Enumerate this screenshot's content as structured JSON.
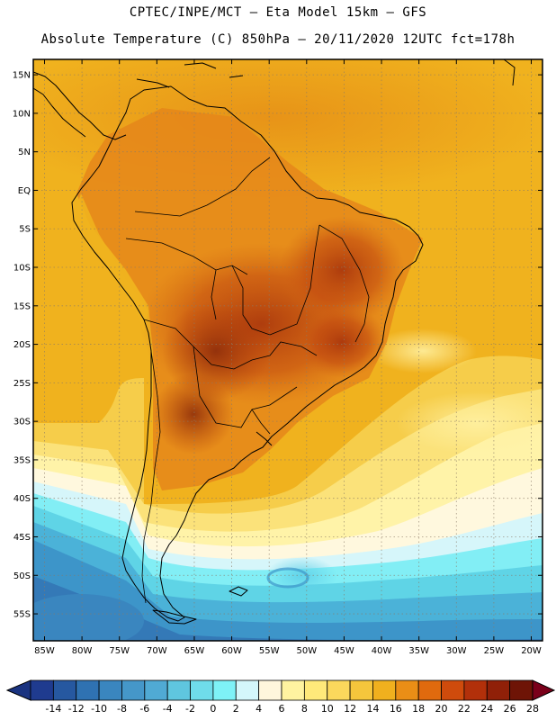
{
  "header": {
    "line1": "CPTEC/INPE/MCT –  Eta Model 15km – GFS",
    "line2": "Absolute Temperature (C) 850hPa – 20/11/2020 12UTC fct=178h"
  },
  "map": {
    "extent": {
      "lon": [
        -86.5,
        -18.5
      ],
      "lat": [
        -58.5,
        17
      ]
    },
    "lat_ticks": [
      {
        "value": 15,
        "label": "15N"
      },
      {
        "value": 10,
        "label": "10N"
      },
      {
        "value": 5,
        "label": "5N"
      },
      {
        "value": 0,
        "label": "EQ"
      },
      {
        "value": -5,
        "label": "5S"
      },
      {
        "value": -10,
        "label": "10S"
      },
      {
        "value": -15,
        "label": "15S"
      },
      {
        "value": -20,
        "label": "20S"
      },
      {
        "value": -25,
        "label": "25S"
      },
      {
        "value": -30,
        "label": "30S"
      },
      {
        "value": -35,
        "label": "35S"
      },
      {
        "value": -40,
        "label": "40S"
      },
      {
        "value": -45,
        "label": "45S"
      },
      {
        "value": -50,
        "label": "50S"
      },
      {
        "value": -55,
        "label": "55S"
      }
    ],
    "lon_ticks": [
      {
        "value": -85,
        "label": "85W"
      },
      {
        "value": -80,
        "label": "80W"
      },
      {
        "value": -75,
        "label": "75W"
      },
      {
        "value": -70,
        "label": "70W"
      },
      {
        "value": -65,
        "label": "65W"
      },
      {
        "value": -60,
        "label": "60W"
      },
      {
        "value": -55,
        "label": "55W"
      },
      {
        "value": -50,
        "label": "50W"
      },
      {
        "value": -45,
        "label": "45W"
      },
      {
        "value": -40,
        "label": "40W"
      },
      {
        "value": -35,
        "label": "35W"
      },
      {
        "value": -30,
        "label": "30W"
      },
      {
        "value": -25,
        "label": "25W"
      },
      {
        "value": -20,
        "label": "20W"
      }
    ]
  },
  "colorbar": {
    "labels": [
      "-14",
      "-12",
      "-10",
      "-8",
      "-6",
      "-4",
      "-2",
      "0",
      "2",
      "4",
      "6",
      "8",
      "10",
      "12",
      "14",
      "16",
      "18",
      "20",
      "22",
      "24",
      "26",
      "28"
    ],
    "under_color": "#1a3380",
    "over_color": "#7a001a",
    "colors": [
      "#1f3b8f",
      "#2658a0",
      "#2f72b2",
      "#3a86bf",
      "#4597c9",
      "#50aad4",
      "#5fc6df",
      "#6fdcea",
      "#7ef2f7",
      "#d4f7fb",
      "#fff6dc",
      "#fff3a0",
      "#ffe97a",
      "#fbd85c",
      "#f5c63c",
      "#f0b01e",
      "#ea8e16",
      "#e06a0e",
      "#cf4b0c",
      "#b2300a",
      "#902008",
      "#6e1406"
    ]
  }
}
